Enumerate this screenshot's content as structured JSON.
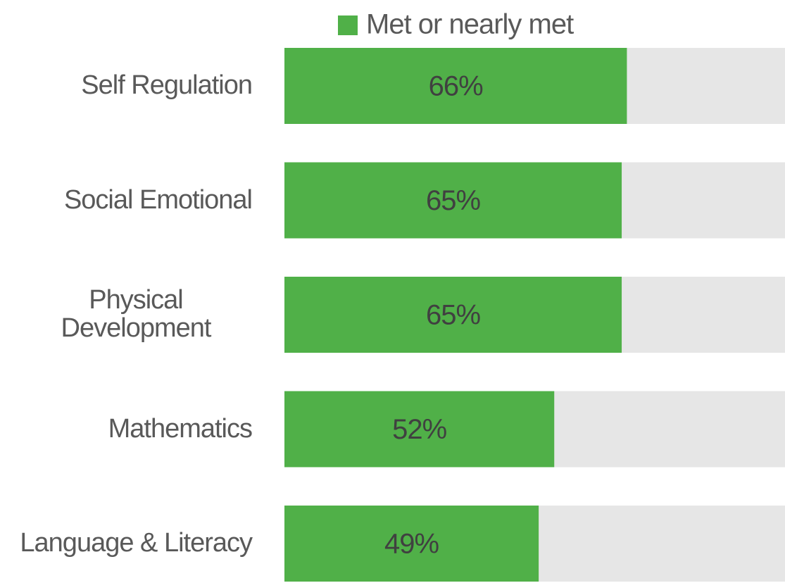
{
  "chart_data": {
    "type": "bar",
    "orientation": "horizontal",
    "categories": [
      "Self Regulation",
      "Social Emotional",
      "Physical Development",
      "Mathematics",
      "Language & Literacy"
    ],
    "series": [
      {
        "name": "Met or nearly met",
        "color": "#50b048",
        "values": [
          66,
          65,
          65,
          52,
          49
        ],
        "value_labels": [
          "66%",
          "65%",
          "65%",
          "52%",
          "49%"
        ]
      }
    ],
    "xlim": [
      0,
      100
    ],
    "legend": "top"
  }
}
